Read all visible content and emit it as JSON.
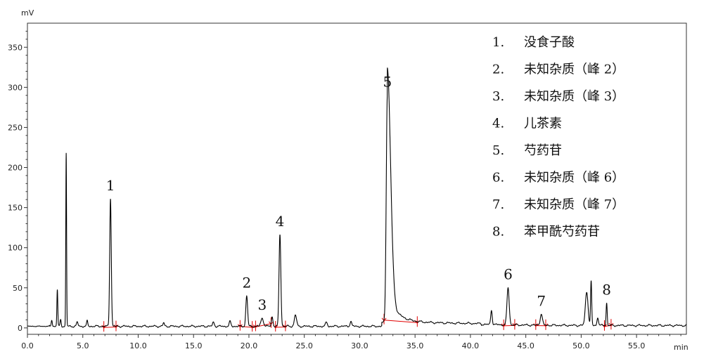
{
  "chart_data": {
    "type": "line",
    "xlabel": "min",
    "ylabel": "mV",
    "xlim": [
      0,
      59.5
    ],
    "ylim": [
      -8,
      380
    ],
    "x_ticks": [
      "0.0",
      "5.0",
      "10.0",
      "15.0",
      "20.0",
      "25.0",
      "30.0",
      "35.0",
      "40.0",
      "45.0",
      "50.0",
      "55.0"
    ],
    "y_ticks": [
      "0",
      "50",
      "100",
      "150",
      "200",
      "250",
      "300",
      "350"
    ],
    "grid": false,
    "legend_position": "top-right",
    "trace_color": "#000000",
    "integration_color": "#e00000",
    "baseline": 2,
    "peaks": [
      {
        "t": 2.2,
        "h": 8,
        "w": 0.05
      },
      {
        "t": 2.7,
        "h": 46,
        "w": 0.04
      },
      {
        "t": 3.0,
        "h": 8,
        "w": 0.05
      },
      {
        "t": 3.5,
        "h": 216,
        "w": 0.035
      },
      {
        "t": 4.5,
        "h": 5,
        "w": 0.07
      },
      {
        "t": 5.4,
        "h": 7,
        "w": 0.05
      },
      {
        "t": 7.5,
        "h": 160,
        "w": 0.07,
        "label": "1"
      },
      {
        "t": 12.3,
        "h": 4,
        "w": 0.07
      },
      {
        "t": 16.8,
        "h": 5,
        "w": 0.08
      },
      {
        "t": 18.3,
        "h": 6,
        "w": 0.07
      },
      {
        "t": 19.8,
        "h": 38,
        "w": 0.08,
        "label": "2"
      },
      {
        "t": 21.2,
        "h": 10,
        "w": 0.12,
        "label": "3"
      },
      {
        "t": 22.1,
        "h": 12,
        "w": 0.07
      },
      {
        "t": 22.8,
        "h": 115,
        "w": 0.08,
        "label": "4"
      },
      {
        "t": 24.2,
        "h": 14,
        "w": 0.1
      },
      {
        "t": 27.0,
        "h": 5,
        "w": 0.08
      },
      {
        "t": 29.2,
        "h": 6,
        "w": 0.08
      },
      {
        "t": 32.5,
        "h": 285,
        "w": 0.1,
        "label": "5",
        "tail": 1.2
      },
      {
        "t": 41.9,
        "h": 18,
        "w": 0.07
      },
      {
        "t": 43.4,
        "h": 46,
        "w": 0.1,
        "label": "6"
      },
      {
        "t": 46.4,
        "h": 14,
        "w": 0.1,
        "label": "7"
      },
      {
        "t": 50.5,
        "h": 42,
        "w": 0.12
      },
      {
        "t": 50.9,
        "h": 55,
        "w": 0.05
      },
      {
        "t": 51.5,
        "h": 10,
        "w": 0.07
      },
      {
        "t": 52.3,
        "h": 28,
        "w": 0.05,
        "label": "8"
      }
    ],
    "integration_segments": [
      [
        6.9,
        8.0
      ],
      [
        19.2,
        20.3
      ],
      [
        20.6,
        22.0
      ],
      [
        22.4,
        23.3
      ],
      [
        32.2,
        35.2
      ],
      [
        43.0,
        44.0
      ],
      [
        45.9,
        46.8
      ],
      [
        52.1,
        52.7
      ]
    ],
    "legend": [
      {
        "num": "1.",
        "name": "没食子酸"
      },
      {
        "num": "2.",
        "name": "未知杂质（峰 2）"
      },
      {
        "num": "3.",
        "name": "未知杂质（峰 3）"
      },
      {
        "num": "4.",
        "name": "儿茶素"
      },
      {
        "num": "5.",
        "name": "芍药苷"
      },
      {
        "num": "6.",
        "name": "未知杂质（峰 6）"
      },
      {
        "num": "7.",
        "name": "未知杂质（峰 7）"
      },
      {
        "num": "8.",
        "name": "苯甲酰芍药苷"
      }
    ]
  }
}
